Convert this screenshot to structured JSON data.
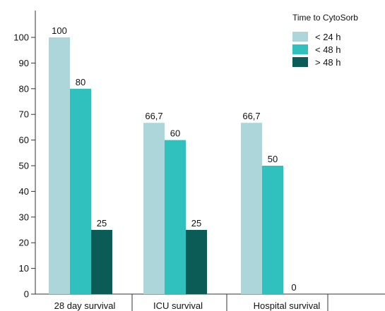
{
  "chart_data": {
    "type": "bar",
    "categories": [
      "28 day survival",
      "ICU survival",
      "Hospital survival"
    ],
    "series": [
      {
        "name": "< 24 h",
        "values": [
          100,
          66.7,
          66.7
        ],
        "labels": [
          "100",
          "66,7",
          "66,7"
        ],
        "color": "#acd6d9"
      },
      {
        "name": "< 48 h",
        "values": [
          80,
          60,
          50
        ],
        "labels": [
          "80",
          "60",
          "50"
        ],
        "color": "#30c1bf"
      },
      {
        "name": "> 48 h",
        "values": [
          25,
          25,
          0
        ],
        "labels": [
          "25",
          "25",
          "0"
        ],
        "color": "#0b5c57"
      }
    ],
    "legend_title": "Time to CytoSorb",
    "legend_position": "top-right",
    "y_ticks": [
      "0",
      "10",
      "20",
      "30",
      "40",
      "50",
      "60",
      "70",
      "80",
      "90",
      "100"
    ],
    "ylim": [
      0,
      110
    ],
    "xlabel": "",
    "ylabel": "",
    "title": "",
    "grid": false
  }
}
